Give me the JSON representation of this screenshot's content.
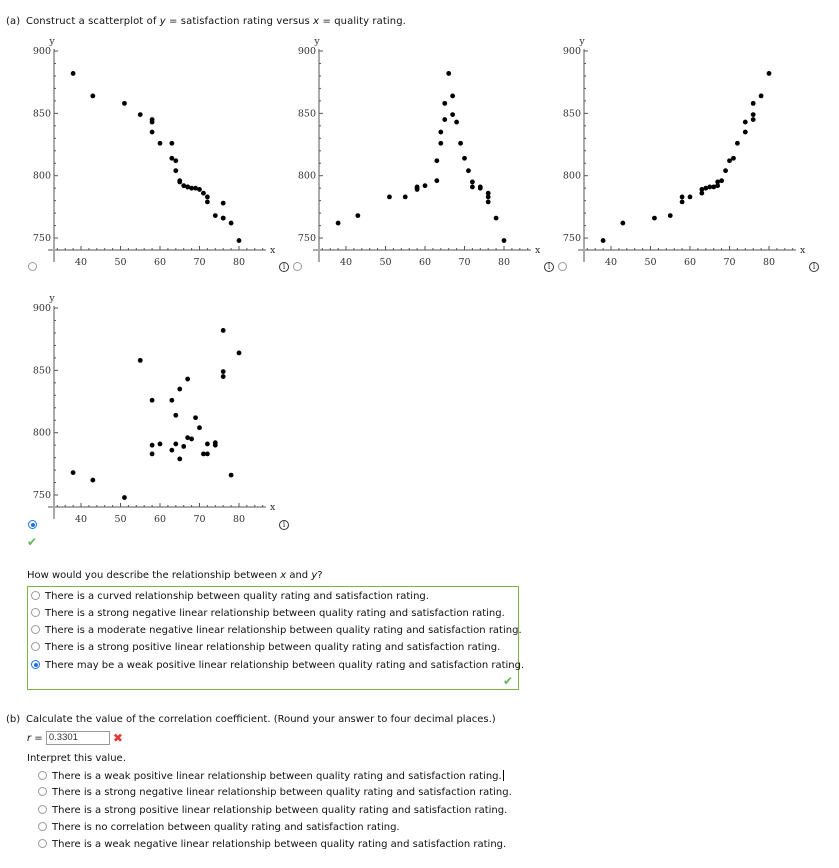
{
  "part_a": {
    "label": "(a)",
    "instruction_pre": "Construct a scatterplot of ",
    "instruction_y": "y",
    "instruction_mid": " = satisfaction rating versus ",
    "instruction_x": "x",
    "instruction_post": " = quality rating.",
    "plot_options": [
      {
        "id": "option-1",
        "selected": false,
        "pattern": "negative curve"
      },
      {
        "id": "option-2",
        "selected": false,
        "pattern": "peak"
      },
      {
        "id": "option-3",
        "selected": false,
        "pattern": "positive curve"
      },
      {
        "id": "option-4",
        "selected": true,
        "pattern": "scattered weak positive",
        "correct": true
      }
    ],
    "question_pre": "How would you describe the relationship between ",
    "question_x": "x",
    "question_mid": " and ",
    "question_y": "y",
    "question_post": "?",
    "relationship_options": [
      {
        "label": "There is a curved relationship between quality rating and satisfaction rating.",
        "selected": false
      },
      {
        "label": "There is a strong negative linear relationship between quality rating and satisfaction rating.",
        "selected": false
      },
      {
        "label": "There is a moderate negative linear relationship between quality rating and satisfaction rating.",
        "selected": false
      },
      {
        "label": "There is a strong positive linear relationship between quality rating and satisfaction rating.",
        "selected": false
      },
      {
        "label": "There may be a weak positive linear relationship between quality rating and satisfaction rating.",
        "selected": true
      }
    ],
    "relationship_correct": true
  },
  "part_b": {
    "label": "(b)",
    "instruction": "Calculate the value of the correlation coefficient. (Round your answer to four decimal places.)",
    "r_label": "r",
    "r_equals": " = ",
    "r_value": "0.3301",
    "r_status": "incorrect",
    "interpret_label": "Interpret this value.",
    "interpret_options": [
      {
        "label": "There is a weak positive linear relationship between quality rating and satisfaction rating.",
        "selected": false
      },
      {
        "label": "There is a strong negative linear relationship between quality rating and satisfaction rating.",
        "selected": false
      },
      {
        "label": "There is a strong positive linear relationship between quality rating and satisfaction rating.",
        "selected": false
      },
      {
        "label": "There is no correlation between quality rating and satisfaction rating.",
        "selected": false
      },
      {
        "label": "There is a weak negative linear relationship between quality rating and satisfaction rating.",
        "selected": false
      }
    ]
  },
  "colors": {
    "correct_green": "#5cb85c",
    "box_border_green": "#7cb342",
    "incorrect_red": "#e53935",
    "radio_blue": "#1a73e8",
    "axis_gray": "#aaaaaa",
    "point_black": "#000000"
  },
  "chart_data": [
    {
      "type": "scatter",
      "title": "Option 1",
      "xlabel": "x",
      "ylabel": "y",
      "xlim": [
        33,
        86
      ],
      "ylim": [
        739,
        900
      ],
      "xticks": [
        40,
        50,
        60,
        70,
        80
      ],
      "yticks": [
        750,
        800,
        850,
        900
      ],
      "x": [
        38,
        43,
        51,
        55,
        58,
        58,
        58,
        60,
        63,
        63,
        64,
        64,
        65,
        65,
        66,
        67,
        67,
        68,
        69,
        70,
        71,
        72,
        72,
        74,
        76,
        76,
        76,
        78,
        80
      ],
      "y": [
        882,
        864,
        858,
        849,
        845,
        843,
        835,
        826,
        826,
        814,
        812,
        804,
        796,
        795,
        792,
        791,
        791,
        790,
        790,
        789,
        786,
        783,
        779,
        768,
        766,
        778,
        766,
        762,
        748
      ]
    },
    {
      "type": "scatter",
      "title": "Option 2",
      "xlabel": "x",
      "ylabel": "y",
      "xlim": [
        33,
        86
      ],
      "ylim": [
        739,
        900
      ],
      "xticks": [
        40,
        50,
        60,
        70,
        80
      ],
      "yticks": [
        750,
        800,
        850,
        900
      ],
      "x": [
        38,
        43,
        51,
        55,
        58,
        58,
        58,
        60,
        63,
        63,
        64,
        64,
        65,
        65,
        66,
        67,
        67,
        68,
        69,
        70,
        71,
        72,
        72,
        74,
        74,
        76,
        76,
        76,
        78,
        80
      ],
      "y": [
        762,
        768,
        783,
        783,
        791,
        790,
        789,
        792,
        796,
        812,
        826,
        835,
        845,
        858,
        882,
        864,
        849,
        843,
        826,
        814,
        804,
        795,
        791,
        791,
        790,
        786,
        783,
        779,
        766,
        748
      ]
    },
    {
      "type": "scatter",
      "title": "Option 3",
      "xlabel": "x",
      "ylabel": "y",
      "xlim": [
        33,
        86
      ],
      "ylim": [
        739,
        900
      ],
      "xticks": [
        40,
        50,
        60,
        70,
        80
      ],
      "yticks": [
        750,
        800,
        850,
        900
      ],
      "x": [
        38,
        43,
        51,
        55,
        58,
        58,
        60,
        63,
        63,
        64,
        65,
        66,
        67,
        67,
        68,
        69,
        70,
        71,
        72,
        74,
        74,
        76,
        76,
        76,
        78,
        80
      ],
      "y": [
        748,
        762,
        766,
        768,
        783,
        779,
        783,
        789,
        786,
        790,
        791,
        791,
        795,
        792,
        796,
        804,
        812,
        814,
        826,
        843,
        835,
        858,
        849,
        845,
        864,
        882
      ]
    },
    {
      "type": "scatter",
      "title": "Option 4 (selected)",
      "xlabel": "x",
      "ylabel": "y",
      "xlim": [
        33,
        86
      ],
      "ylim": [
        739,
        900
      ],
      "xticks": [
        40,
        50,
        60,
        70,
        80
      ],
      "yticks": [
        750,
        800,
        850,
        900
      ],
      "x": [
        38,
        43,
        51,
        55,
        58,
        58,
        58,
        60,
        63,
        63,
        64,
        64,
        65,
        65,
        66,
        67,
        67,
        68,
        69,
        70,
        71,
        72,
        72,
        74,
        74,
        76,
        76,
        76,
        78,
        80
      ],
      "y": [
        768,
        762,
        748,
        858,
        826,
        790,
        783,
        791,
        826,
        786,
        814,
        791,
        835,
        779,
        789,
        843,
        796,
        795,
        812,
        804,
        783,
        791,
        783,
        792,
        790,
        882,
        849,
        845,
        766,
        864
      ]
    }
  ]
}
